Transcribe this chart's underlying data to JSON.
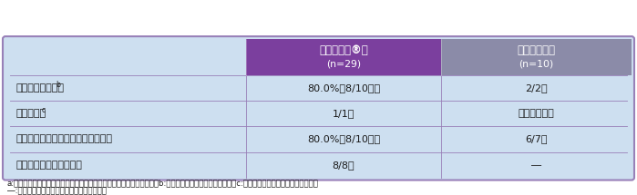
{
  "header_col2_line1": "シベクトロ®群",
  "header_col2_line2": "n=29",
  "header_col3_line1": "リネゾリド群",
  "header_col3_line2": "n=10",
  "rows": [
    [
      "深在性皮膚感染症",
      "b",
      "80.0%（8/10例）",
      "2/2例"
    ],
    [
      "慢性膣皮症",
      "c",
      "1/1例",
      "該当症例なし"
    ],
    [
      "外傷・熱傷及び手術創等の二次感染",
      "",
      "80.0%（8/10例）",
      "6/7例"
    ],
    [
      "びらん・漰瘍の二次感染",
      "",
      "8/8例",
      "―"
    ]
  ],
  "footnote_line1": "a:「治癌」の割合（「判定不能」及び「欠測」は分母に含めた）。　　b:蜂巣炎、丹毒、リンパ管炎等　　c:化膤性汗腺炎、頭部乳頭状皮膚炎等",
  "footnote_line2": "―:リネゾリドの承認外の適応症のため不記載",
  "bg_color": "#cddff0",
  "header2_bg": "#7b3f9e",
  "header3_bg": "#8b8ba8",
  "header_text_color": "#ffffff",
  "row_text_color": "#1a1a1a",
  "border_color": "#9980b8",
  "outer_border_color": "#9880b8",
  "footnote_color": "#1a1a1a",
  "footnote_size": 6.2,
  "header_fontsize": 8.5,
  "header_sub_fontsize": 7.8,
  "cell_fontsize": 8.0,
  "superscript_size": 5.5
}
